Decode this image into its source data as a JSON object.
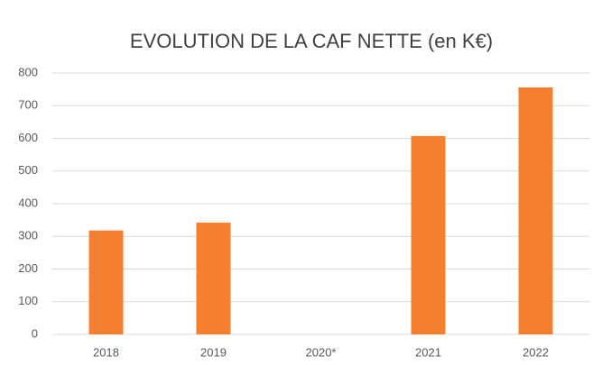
{
  "chart_data": {
    "type": "bar",
    "title": "EVOLUTION DE LA CAF NETTE (en K€)",
    "categories": [
      "2018",
      "2019",
      "2020*",
      "2021",
      "2022"
    ],
    "values": [
      318,
      342,
      null,
      607,
      756
    ],
    "color": "#f47f2f",
    "ylim": [
      0,
      800
    ],
    "yticks": [
      0,
      100,
      200,
      300,
      400,
      500,
      600,
      700,
      800
    ],
    "grid": true
  }
}
